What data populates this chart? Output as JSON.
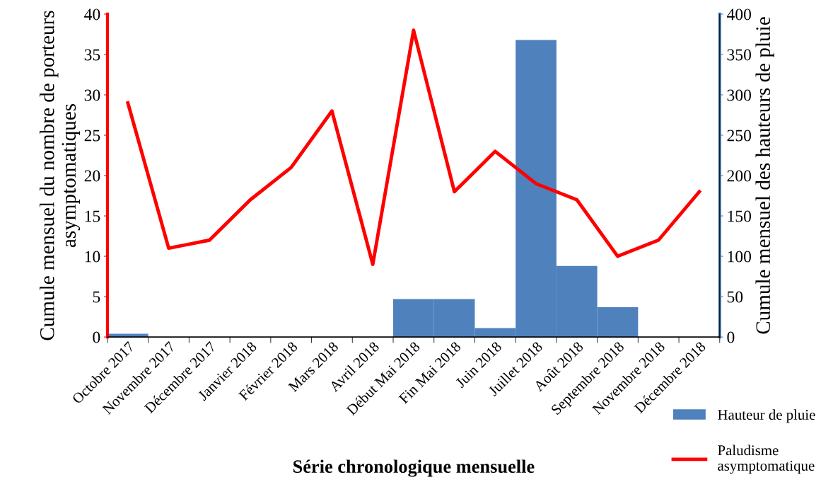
{
  "chart_data": {
    "type": "line",
    "xlabel": "Série chronologique mensuelle",
    "ylabel": "Cumule mensuel du nombre de porteurs\nasymptomatiques",
    "y2label": "Cumule mensuel des hauteurs de pluie",
    "categories": [
      "Octobre 2017",
      "Novembre 2017",
      "Décembre 2017",
      "Janvier 2018",
      "Février 2018",
      "Mars 2018",
      "Avril 2018",
      "Début Mai 2018",
      "Fin Mai 2018",
      "Juin 2018",
      "Juillet 2018",
      "Août 2018",
      "Septembre 2018",
      "Novembre 2018",
      "Décembre 2018"
    ],
    "series": [
      {
        "name": "Hauteur de pluie",
        "type": "bar",
        "axis": "y2",
        "color": "#4f81bd",
        "values": [
          4,
          0,
          0,
          0,
          0,
          0,
          0,
          47,
          47,
          11,
          368,
          88,
          37,
          0,
          0
        ]
      },
      {
        "name": "Paludisme\nasymptomatique",
        "color": "#ff0000",
        "values": [
          29,
          11,
          12,
          17,
          21,
          28,
          9,
          38,
          18,
          23,
          19,
          17,
          10,
          12,
          18
        ]
      }
    ],
    "ylim": [
      0,
      40
    ],
    "yticks": [
      0,
      5,
      10,
      15,
      20,
      25,
      30,
      35,
      40
    ],
    "y2lim": [
      0,
      400
    ],
    "y2ticks": [
      0,
      50,
      100,
      150,
      200,
      250,
      300,
      350,
      400
    ],
    "grid": false,
    "legend": "bottom right",
    "marker": "none",
    "line_style": "solid"
  }
}
